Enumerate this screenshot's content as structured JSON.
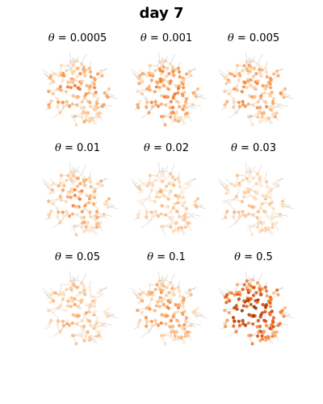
{
  "title": "day 7",
  "panels": [
    {
      "symbol": "θ",
      "value": "0.0005",
      "intensity": 0.42
    },
    {
      "symbol": "θ",
      "value": "0.001",
      "intensity": 0.44
    },
    {
      "symbol": "θ",
      "value": "0.005",
      "intensity": 0.4
    },
    {
      "symbol": "θ",
      "value": "0.01",
      "intensity": 0.36
    },
    {
      "symbol": "θ",
      "value": "0.02",
      "intensity": 0.2
    },
    {
      "symbol": "θ",
      "value": "0.03",
      "intensity": 0.18
    },
    {
      "symbol": "θ",
      "value": "0.05",
      "intensity": 0.24
    },
    {
      "symbol": "θ",
      "value": "0.1",
      "intensity": 0.38
    },
    {
      "symbol": "θ",
      "value": "0.5",
      "intensity": 0.85
    }
  ],
  "colors": {
    "colormap": [
      "#fff5eb",
      "#fdd0a2",
      "#fd8d3c",
      "#d94801",
      "#7f2704"
    ],
    "edge": "#555555"
  }
}
